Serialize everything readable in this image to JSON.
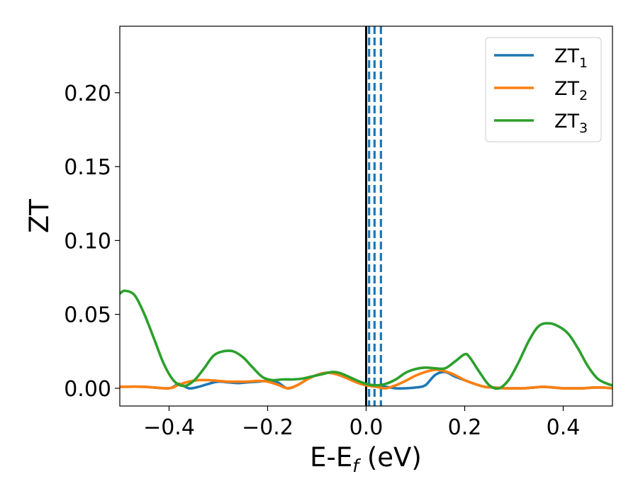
{
  "chart_data": {
    "type": "line",
    "xlabel": {
      "main": "E-E",
      "sub": "f",
      "suffix": " (eV)"
    },
    "ylabel": "ZT",
    "xlim": [
      -0.5,
      0.5
    ],
    "ylim": [
      -0.012,
      0.245
    ],
    "xticks": [
      -0.4,
      -0.2,
      0.0,
      0.2,
      0.4
    ],
    "xtick_labels": [
      "−0.4",
      "−0.2",
      "0.0",
      "0.2",
      "0.4"
    ],
    "yticks": [
      0.0,
      0.05,
      0.1,
      0.15,
      0.2
    ],
    "ytick_labels": [
      "0.00",
      "0.05",
      "0.10",
      "0.15",
      "0.20"
    ],
    "grid": false,
    "legend_placement": "top-right",
    "series": [
      {
        "name": "ZT",
        "subscript": "1",
        "color": "#1f77b4",
        "x": [
          -0.5,
          -0.45,
          -0.4,
          -0.38,
          -0.36,
          -0.34,
          -0.32,
          -0.3,
          -0.28,
          -0.26,
          -0.24,
          -0.22,
          -0.2,
          -0.18,
          -0.16,
          -0.14,
          -0.12,
          -0.1,
          -0.08,
          -0.06,
          -0.04,
          -0.02,
          0.0,
          0.02,
          0.04,
          0.06,
          0.08,
          0.1,
          0.12,
          0.14,
          0.16,
          0.18,
          0.2,
          0.22,
          0.24,
          0.26,
          0.28,
          0.3,
          0.32,
          0.34,
          0.36,
          0.38,
          0.4,
          0.42,
          0.44,
          0.46,
          0.48,
          0.5
        ],
        "y": [
          0.001,
          0.001,
          0.0,
          0.003,
          0.0,
          0.001,
          0.003,
          0.0045,
          0.004,
          0.0035,
          0.004,
          0.0045,
          0.005,
          0.004,
          0.0,
          0.002,
          0.006,
          0.009,
          0.0105,
          0.0095,
          0.007,
          0.005,
          0.003,
          0.0015,
          0.001,
          0.0,
          0.0,
          0.0005,
          0.002,
          0.009,
          0.011,
          0.008,
          0.0055,
          0.003,
          0.001,
          0.0005,
          0.0,
          0.0,
          0.0,
          0.0005,
          0.001,
          0.0005,
          0.0,
          0.0,
          0.0,
          0.0005,
          0.0005,
          0.0
        ]
      },
      {
        "name": "ZT",
        "subscript": "2",
        "color": "#ff7f0e",
        "x": [
          -0.5,
          -0.45,
          -0.4,
          -0.38,
          -0.36,
          -0.34,
          -0.32,
          -0.3,
          -0.28,
          -0.26,
          -0.24,
          -0.22,
          -0.2,
          -0.18,
          -0.16,
          -0.14,
          -0.12,
          -0.1,
          -0.08,
          -0.06,
          -0.04,
          -0.02,
          0.0,
          0.02,
          0.04,
          0.06,
          0.08,
          0.1,
          0.12,
          0.14,
          0.16,
          0.18,
          0.2,
          0.22,
          0.24,
          0.26,
          0.28,
          0.3,
          0.32,
          0.34,
          0.36,
          0.38,
          0.4,
          0.42,
          0.44,
          0.46,
          0.48,
          0.5
        ],
        "y": [
          0.001,
          0.001,
          0.0,
          0.0025,
          0.0045,
          0.0055,
          0.0055,
          0.005,
          0.0045,
          0.0045,
          0.0045,
          0.005,
          0.0045,
          0.0025,
          0.0,
          0.002,
          0.006,
          0.009,
          0.0105,
          0.0095,
          0.007,
          0.004,
          0.002,
          0.001,
          0.0,
          0.002,
          0.005,
          0.0085,
          0.011,
          0.0125,
          0.0115,
          0.009,
          0.0055,
          0.003,
          0.001,
          0.0005,
          0.0,
          0.0,
          0.0,
          0.0005,
          0.001,
          0.0005,
          0.0,
          0.0,
          0.0,
          0.0005,
          0.0005,
          0.0
        ]
      },
      {
        "name": "ZT",
        "subscript": "3",
        "color": "#2ca02c",
        "x": [
          -0.5,
          -0.49,
          -0.47,
          -0.45,
          -0.43,
          -0.41,
          -0.39,
          -0.37,
          -0.35,
          -0.33,
          -0.31,
          -0.29,
          -0.27,
          -0.25,
          -0.23,
          -0.21,
          -0.19,
          -0.17,
          -0.15,
          -0.13,
          -0.11,
          -0.09,
          -0.07,
          -0.055,
          -0.04,
          -0.02,
          0.0,
          0.02,
          0.04,
          0.06,
          0.08,
          0.1,
          0.12,
          0.14,
          0.16,
          0.18,
          0.2,
          0.21,
          0.23,
          0.25,
          0.27,
          0.29,
          0.31,
          0.33,
          0.35,
          0.37,
          0.39,
          0.41,
          0.43,
          0.45,
          0.47,
          0.49,
          0.5
        ],
        "y": [
          0.064,
          0.066,
          0.063,
          0.05,
          0.033,
          0.016,
          0.005,
          0.0015,
          0.005,
          0.013,
          0.022,
          0.025,
          0.025,
          0.021,
          0.014,
          0.0075,
          0.0055,
          0.006,
          0.006,
          0.0065,
          0.008,
          0.0095,
          0.011,
          0.0105,
          0.0085,
          0.0055,
          0.003,
          0.002,
          0.003,
          0.006,
          0.0105,
          0.013,
          0.014,
          0.0135,
          0.0135,
          0.018,
          0.023,
          0.021,
          0.011,
          0.002,
          0.0,
          0.006,
          0.018,
          0.032,
          0.042,
          0.044,
          0.042,
          0.037,
          0.027,
          0.015,
          0.0065,
          0.003,
          0.002
        ]
      }
    ],
    "vertical_lines": [
      {
        "x": 0.0,
        "style": "solid",
        "color": "#000000"
      },
      {
        "x": 0.006,
        "style": "dashed",
        "color": "#1f77b4"
      },
      {
        "x": 0.017,
        "style": "dashed",
        "color": "#1f77b4"
      },
      {
        "x": 0.03,
        "style": "dashed",
        "color": "#1f77b4"
      }
    ]
  }
}
